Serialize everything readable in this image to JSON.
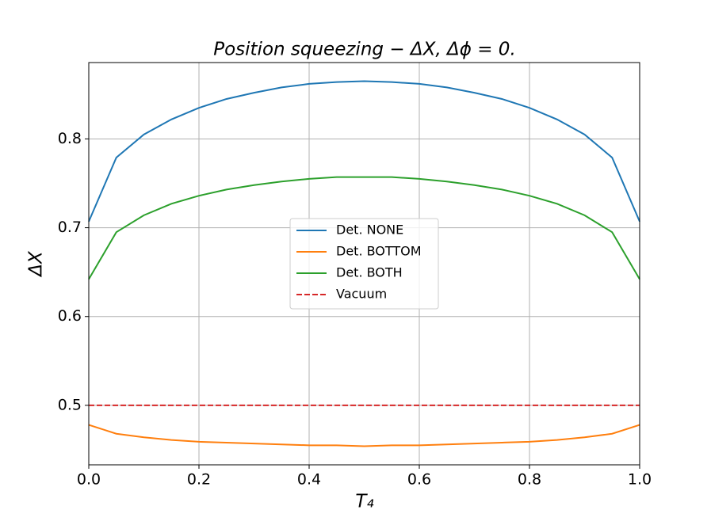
{
  "chart_data": {
    "type": "line",
    "title": "Position squeezing − ΔX, Δϕ = 0.",
    "xlabel": "T₄",
    "ylabel": "ΔX",
    "x": [
      0,
      0.05,
      0.1,
      0.15,
      0.2,
      0.25,
      0.3,
      0.35,
      0.4,
      0.45,
      0.5,
      0.55,
      0.6,
      0.65,
      0.7,
      0.75,
      0.8,
      0.85,
      0.9,
      0.95,
      1.0
    ],
    "series": [
      {
        "name": "Det. NONE",
        "color": "#1f77b4",
        "dash": false,
        "values": [
          0.707,
          0.779,
          0.805,
          0.822,
          0.835,
          0.845,
          0.852,
          0.858,
          0.862,
          0.864,
          0.865,
          0.864,
          0.862,
          0.858,
          0.852,
          0.845,
          0.835,
          0.822,
          0.805,
          0.779,
          0.707
        ]
      },
      {
        "name": "Det. BOTTOM",
        "color": "#ff7f0e",
        "dash": false,
        "values": [
          0.478,
          0.468,
          0.464,
          0.461,
          0.459,
          0.458,
          0.457,
          0.456,
          0.455,
          0.455,
          0.454,
          0.455,
          0.455,
          0.456,
          0.457,
          0.458,
          0.459,
          0.461,
          0.464,
          0.468,
          0.478
        ]
      },
      {
        "name": "Det. BOTH",
        "color": "#2ca02c",
        "dash": false,
        "values": [
          0.642,
          0.695,
          0.714,
          0.727,
          0.736,
          0.743,
          0.748,
          0.752,
          0.755,
          0.757,
          0.757,
          0.757,
          0.755,
          0.752,
          0.748,
          0.743,
          0.736,
          0.727,
          0.714,
          0.695,
          0.642
        ]
      },
      {
        "name": "Vacuum",
        "color": "#d62728",
        "dash": true,
        "values": [
          0.5,
          0.5,
          0.5,
          0.5,
          0.5,
          0.5,
          0.5,
          0.5,
          0.5,
          0.5,
          0.5,
          0.5,
          0.5,
          0.5,
          0.5,
          0.5,
          0.5,
          0.5,
          0.5,
          0.5,
          0.5
        ]
      }
    ],
    "xlim": [
      0,
      1.0
    ],
    "xticks": [
      {
        "value": 0,
        "label": "0.0"
      },
      0.2,
      0.4,
      0.6,
      0.8,
      {
        "value": 1,
        "label": "1.0"
      }
    ],
    "ylim": [
      0.433,
      0.886
    ],
    "yticks": [
      0.5,
      0.6,
      0.7,
      0.8
    ],
    "grid": true,
    "legend": "center"
  }
}
